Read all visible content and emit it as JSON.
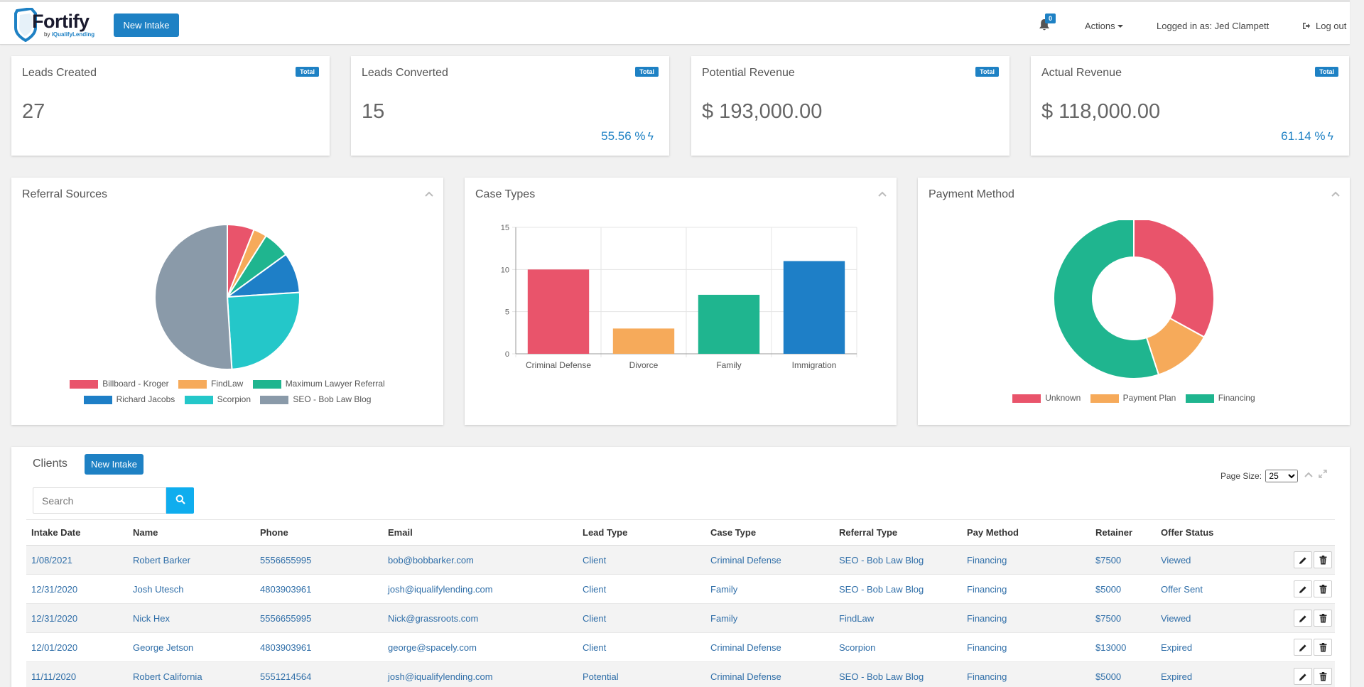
{
  "header": {
    "logo_text": "Fortify",
    "logo_sub_prefix": "by",
    "logo_sub_brand": "iQualifyLending",
    "new_intake_label": "New Intake",
    "notification_count": "0",
    "actions_label": "Actions",
    "logged_in_label": "Logged in as: Jed Clampett",
    "logout_label": "Log out"
  },
  "stats": [
    {
      "title": "Leads Created",
      "badge": "Total",
      "value": "27",
      "pct": ""
    },
    {
      "title": "Leads Converted",
      "badge": "Total",
      "value": "15",
      "pct": "55.56 %"
    },
    {
      "title": "Potential Revenue",
      "badge": "Total",
      "value": "$ 193,000.00",
      "pct": ""
    },
    {
      "title": "Actual Revenue",
      "badge": "Total",
      "value": "$ 118,000.00",
      "pct": "61.14 %"
    }
  ],
  "panels": {
    "referral_title": "Referral Sources",
    "case_title": "Case Types",
    "payment_title": "Payment Method"
  },
  "chart_data": [
    {
      "type": "pie",
      "title": "Referral Sources",
      "categories": [
        "Billboard - Kroger",
        "FindLaw",
        "Maximum Lawyer Referral",
        "Richard Jacobs",
        "Scorpion",
        "SEO - Bob Law Blog"
      ],
      "values": [
        6,
        3,
        6,
        9,
        25,
        51
      ],
      "colors": [
        "#e9546b",
        "#f6aa5a",
        "#1fb58f",
        "#1e7fc7",
        "#24c7c9",
        "#8a9aa9"
      ]
    },
    {
      "type": "bar",
      "title": "Case Types",
      "categories": [
        "Criminal Defense",
        "Divorce",
        "Family",
        "Immigration"
      ],
      "values": [
        10,
        3,
        7,
        11
      ],
      "colors": [
        "#e9546b",
        "#f6aa5a",
        "#1fb58f",
        "#1e7fc7"
      ],
      "ylim": [
        0,
        15
      ],
      "yticks": [
        "0",
        "5",
        "10",
        "15"
      ],
      "grid": true
    },
    {
      "type": "pie",
      "subtype": "doughnut",
      "title": "Payment Method",
      "categories": [
        "Unknown",
        "Payment Plan",
        "Financing"
      ],
      "values": [
        33,
        12,
        55
      ],
      "colors": [
        "#e9546b",
        "#f6aa5a",
        "#1fb58f"
      ]
    }
  ],
  "clients": {
    "title": "Clients",
    "new_intake_label": "New Intake",
    "search_placeholder": "Search",
    "page_size_label": "Page Size:",
    "page_size_value": "25",
    "columns": [
      "Intake Date",
      "Name",
      "Phone",
      "Email",
      "Lead Type",
      "Case Type",
      "Referral Type",
      "Pay Method",
      "Retainer",
      "Offer Status"
    ],
    "rows": [
      [
        "1/08/2021",
        "Robert Barker",
        "5556655995",
        "bob@bobbarker.com",
        "Client",
        "Criminal Defense",
        "SEO - Bob Law Blog",
        "Financing",
        "$7500",
        "Viewed"
      ],
      [
        "12/31/2020",
        "Josh Utesch",
        "4803903961",
        "josh@iqualifylending.com",
        "Client",
        "Family",
        "SEO - Bob Law Blog",
        "Financing",
        "$5000",
        "Offer Sent"
      ],
      [
        "12/31/2020",
        "Nick Hex",
        "5556655995",
        "Nick@grassroots.com",
        "Client",
        "Family",
        "FindLaw",
        "Financing",
        "$7500",
        "Viewed"
      ],
      [
        "12/01/2020",
        "George Jetson",
        "4803903961",
        "george@spacely.com",
        "Client",
        "Criminal Defense",
        "Scorpion",
        "Financing",
        "$13000",
        "Expired"
      ],
      [
        "11/11/2020",
        "Robert California",
        "5551214564",
        "josh@iqualifylending.com",
        "Potential",
        "Criminal Defense",
        "SEO - Bob Law Blog",
        "Financing",
        "$5000",
        "Expired"
      ]
    ]
  },
  "icons": {
    "bell": "bell-icon",
    "logout": "sign-out-icon",
    "bolt": "bolt-icon",
    "collapse": "chevron-up-icon",
    "search": "search-icon",
    "expand": "expand-icon",
    "edit": "pencil-icon",
    "delete": "trash-icon"
  }
}
